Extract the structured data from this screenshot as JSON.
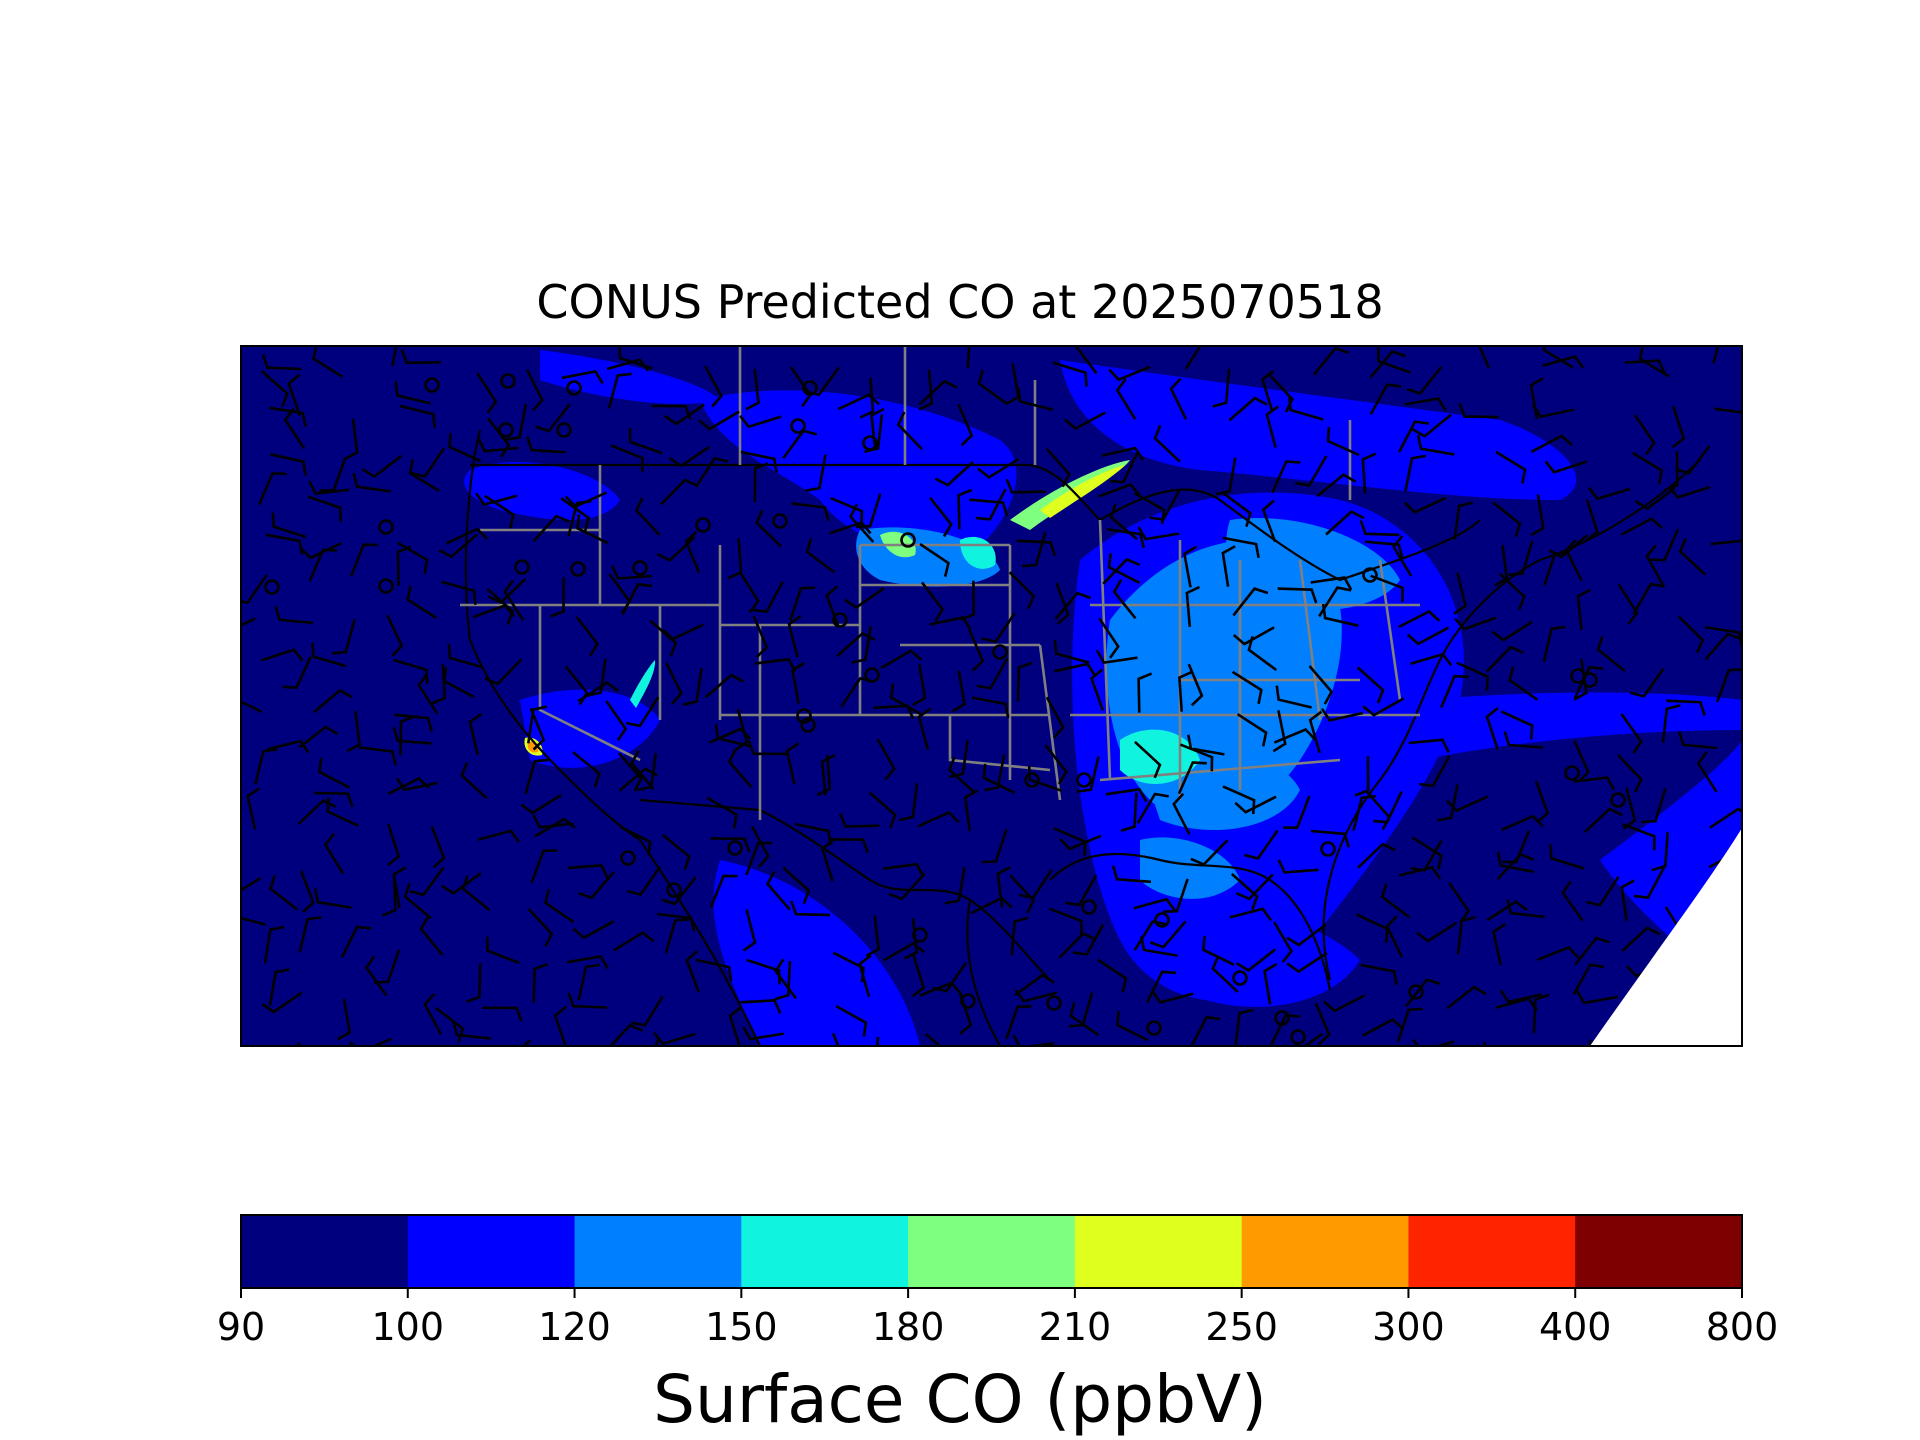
{
  "title": "CONUS Predicted CO at 2025070518",
  "colorbar": {
    "label": "Surface CO (ppbV)",
    "levels": [
      "90",
      "100",
      "120",
      "150",
      "180",
      "210",
      "250",
      "300",
      "400",
      "800"
    ],
    "colors": [
      "#00007f",
      "#0000ff",
      "#007fff",
      "#10f4df",
      "#7fff7f",
      "#dfff1f",
      "#ff9a00",
      "#ff2400",
      "#7f0000"
    ]
  },
  "map": {
    "ocean_color": "#00007f",
    "base_land_color": "#00007f",
    "boundary_colors": {
      "states": "#808080",
      "coast_and_borders": "#000000"
    },
    "markers": "wind barbs (black) and calm-wind circles"
  }
}
